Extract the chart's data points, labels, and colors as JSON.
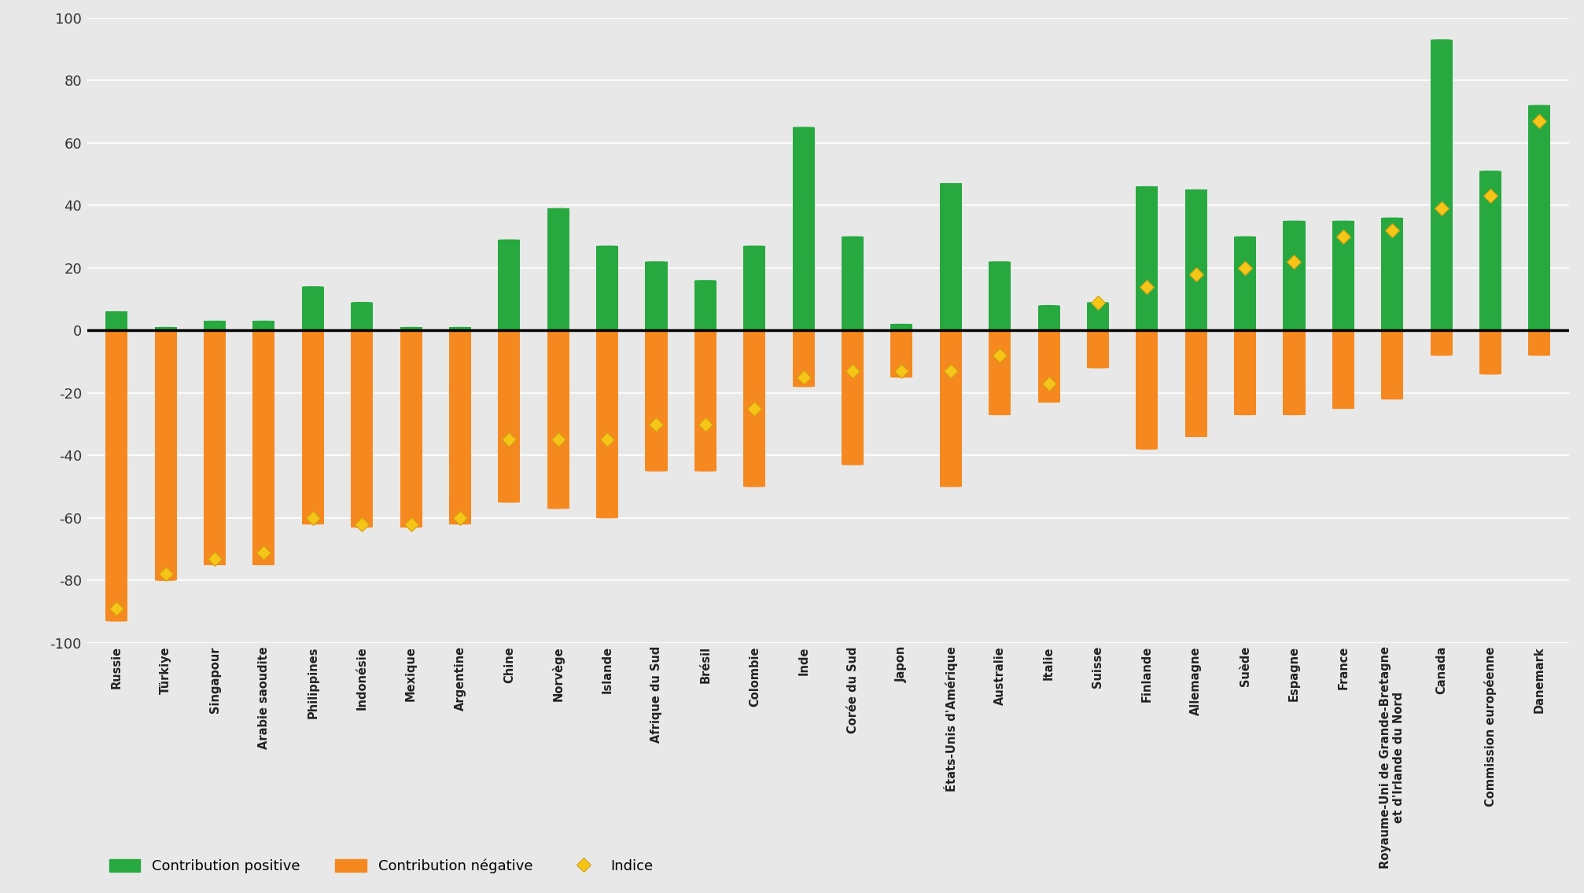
{
  "categories": [
    "Russie",
    "Türkiye",
    "Singapour",
    "Arabie saoudite",
    "Philippines",
    "Indonésie",
    "Mexique",
    "Argentine",
    "Chine",
    "Norvège",
    "Islande",
    "Afrique du Sud",
    "Brésil",
    "Colombie",
    "Inde",
    "Corée du Sud",
    "Japon",
    "États-Unis d'Amérique",
    "Australie",
    "Italie",
    "Suisse",
    "Finlande",
    "Allemagne",
    "Suède",
    "Espagne",
    "France",
    "Royaume-Uni de Grande-Bretagne\net d'Irlande du Nord",
    "Canada",
    "Commission européenne",
    "Danemark"
  ],
  "positive": [
    6,
    1,
    3,
    3,
    14,
    9,
    1,
    1,
    29,
    39,
    27,
    22,
    16,
    27,
    65,
    30,
    2,
    47,
    22,
    8,
    9,
    46,
    45,
    30,
    35,
    35,
    36,
    93,
    51,
    72
  ],
  "negative": [
    -93,
    -80,
    -75,
    -75,
    -62,
    -63,
    -63,
    -62,
    -55,
    -57,
    -60,
    -45,
    -45,
    -50,
    -18,
    -43,
    -15,
    -50,
    -27,
    -23,
    -12,
    -38,
    -34,
    -27,
    -27,
    -25,
    -22,
    -8,
    -14,
    -8
  ],
  "index": [
    -89,
    -78,
    -73,
    -71,
    -60,
    -62,
    -62,
    -60,
    -35,
    -35,
    -35,
    -30,
    -30,
    -25,
    -15,
    -13,
    -13,
    -13,
    -8,
    -17,
    9,
    14,
    18,
    20,
    22,
    30,
    32,
    39,
    43,
    67
  ],
  "positive_color": "#27a940",
  "negative_color": "#f5891f",
  "index_color": "#f5c518",
  "background_color": "#e8e8e8",
  "bar_width": 0.45,
  "ylim": [
    -100,
    100
  ],
  "yticks": [
    -100,
    -80,
    -60,
    -40,
    -20,
    0,
    20,
    40,
    60,
    80,
    100
  ]
}
